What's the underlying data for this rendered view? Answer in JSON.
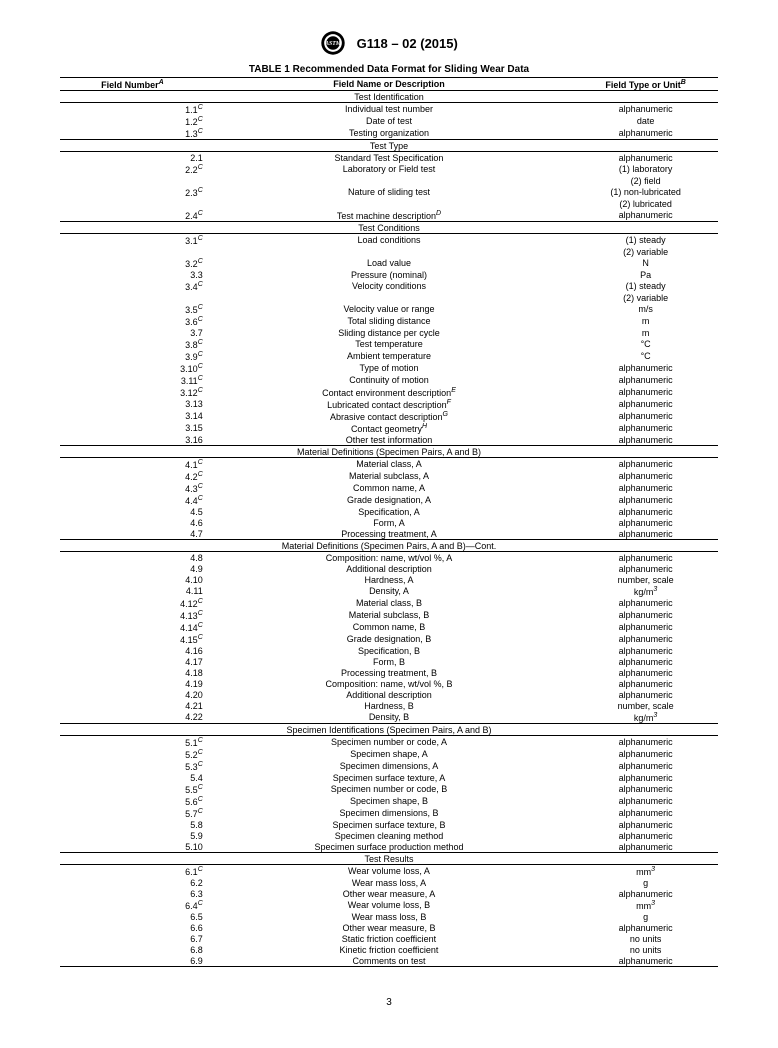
{
  "header": {
    "doc_id": "G118 – 02 (2015)"
  },
  "table_title": "TABLE 1 Recommended Data Format for Sliding Wear Data",
  "columns": {
    "num": "Field Number",
    "num_sup": "A",
    "name": "Field Name or Description",
    "type": "Field Type or Unit",
    "type_sup": "B"
  },
  "sections": [
    {
      "title": "Test Identification",
      "rows": [
        {
          "n": "1.1",
          "s": "C",
          "name": "Individual test number",
          "t": "alphanumeric"
        },
        {
          "n": "1.2",
          "s": "C",
          "name": "Date of test",
          "t": "date"
        },
        {
          "n": "1.3",
          "s": "C",
          "name": "Testing organization",
          "t": "alphanumeric"
        }
      ]
    },
    {
      "title": "Test Type",
      "rows": [
        {
          "n": "2.1",
          "name": "Standard Test Specification",
          "t": "alphanumeric"
        },
        {
          "n": "2.2",
          "s": "C",
          "name": "Laboratory or Field test",
          "t": "(1) laboratory"
        },
        {
          "n": "",
          "name": "",
          "t": "(2) field"
        },
        {
          "n": "2.3",
          "s": "C",
          "name": "Nature of sliding test",
          "t": "(1) non-lubricated"
        },
        {
          "n": "",
          "name": "",
          "t": "(2) lubricated"
        },
        {
          "n": "2.4",
          "s": "C",
          "name": "Test machine description",
          "ns": "D",
          "t": "alphanumeric"
        }
      ]
    },
    {
      "title": "Test Conditions",
      "rows": [
        {
          "n": "3.1",
          "s": "C",
          "name": "Load conditions",
          "t": "(1) steady"
        },
        {
          "n": "",
          "name": "",
          "t": "(2) variable"
        },
        {
          "n": "3.2",
          "s": "C",
          "name": "Load value",
          "t": "N"
        },
        {
          "n": "3.3",
          "name": "Pressure (nominal)",
          "t": "Pa"
        },
        {
          "n": "3.4",
          "s": "C",
          "name": "Velocity conditions",
          "t": "(1) steady"
        },
        {
          "n": "",
          "name": "",
          "t": "(2) variable"
        },
        {
          "n": "3.5",
          "s": "C",
          "name": "Velocity value or range",
          "t": "m/s"
        },
        {
          "n": "3.6",
          "s": "C",
          "name": "Total sliding distance",
          "t": "m"
        },
        {
          "n": "3.7",
          "name": "Sliding distance per cycle",
          "t": "m"
        },
        {
          "n": "3.8",
          "s": "C",
          "name": "Test temperature",
          "t": "°C"
        },
        {
          "n": "3.9",
          "s": "C",
          "name": "Ambient temperature",
          "t": "°C"
        },
        {
          "n": "3.10",
          "s": "C",
          "name": "Type of motion",
          "t": "alphanumeric"
        },
        {
          "n": "3.11",
          "s": "C",
          "name": "Continuity of motion",
          "t": "alphanumeric"
        },
        {
          "n": "3.12",
          "s": "C",
          "name": "Contact environment description",
          "ns": "E",
          "t": "alphanumeric"
        },
        {
          "n": "3.13",
          "name": "Lubricated contact description",
          "ns": "F",
          "t": "alphanumeric"
        },
        {
          "n": "3.14",
          "name": "Abrasive contact description",
          "ns": "G",
          "t": "alphanumeric"
        },
        {
          "n": "3.15",
          "name": "Contact geometry",
          "ns": "H",
          "t": "alphanumeric"
        },
        {
          "n": "3.16",
          "name": "Other test information",
          "t": "alphanumeric"
        }
      ]
    },
    {
      "title": "Material Definitions (Specimen Pairs, A and B)",
      "rows": [
        {
          "n": "4.1",
          "s": "C",
          "name": "Material class, A",
          "t": "alphanumeric"
        },
        {
          "n": "4.2",
          "s": "C",
          "name": "Material subclass, A",
          "t": "alphanumeric"
        },
        {
          "n": "4.3",
          "s": "C",
          "name": "Common name, A",
          "t": "alphanumeric"
        },
        {
          "n": "4.4",
          "s": "C",
          "name": "Grade designation, A",
          "t": "alphanumeric"
        },
        {
          "n": "4.5",
          "name": "Specification, A",
          "t": "alphanumeric"
        },
        {
          "n": "4.6",
          "name": "Form, A",
          "t": "alphanumeric"
        },
        {
          "n": "4.7",
          "name": "Processing treatment, A",
          "t": "alphanumeric"
        }
      ]
    },
    {
      "title": "Material Definitions (Specimen Pairs, A and B)—Cont.",
      "rows": [
        {
          "n": "4.8",
          "name": "Composition: name, wt/vol %, A",
          "t": "alphanumeric"
        },
        {
          "n": "4.9",
          "name": "Additional description",
          "t": "alphanumeric"
        },
        {
          "n": "4.10",
          "name": "Hardness, A",
          "t": "number, scale"
        },
        {
          "n": "4.11",
          "name": "Density, A",
          "t": "kg/m",
          "ts": "3"
        },
        {
          "n": "4.12",
          "s": "C",
          "name": "Material class, B",
          "t": "alphanumeric"
        },
        {
          "n": "4.13",
          "s": "C",
          "name": "Material subclass, B",
          "t": "alphanumeric"
        },
        {
          "n": "4.14",
          "s": "C",
          "name": "Common name, B",
          "t": "alphanumeric"
        },
        {
          "n": "4.15",
          "s": "C",
          "name": "Grade designation, B",
          "t": "alphanumeric"
        },
        {
          "n": "4.16",
          "name": "Specification, B",
          "t": "alphanumeric"
        },
        {
          "n": "4.17",
          "name": "Form, B",
          "t": "alphanumeric"
        },
        {
          "n": "4.18",
          "name": "Processing treatment, B",
          "t": "alphanumeric"
        },
        {
          "n": "4.19",
          "name": "Composition: name, wt/vol %, B",
          "t": "alphanumeric"
        },
        {
          "n": "4.20",
          "name": "Additional description",
          "t": "alphanumeric"
        },
        {
          "n": "4.21",
          "name": "Hardness, B",
          "t": "number, scale"
        },
        {
          "n": "4.22",
          "name": "Density, B",
          "t": "kg/m",
          "ts": "3"
        }
      ]
    },
    {
      "title": "Specimen Identifications (Specimen Pairs, A and B)",
      "rows": [
        {
          "n": "5.1",
          "s": "C",
          "name": "Specimen number or code, A",
          "t": "alphanumeric"
        },
        {
          "n": "5.2",
          "s": "C",
          "name": "Specimen shape, A",
          "t": "alphanumeric"
        },
        {
          "n": "5.3",
          "s": "C",
          "name": "Specimen dimensions, A",
          "t": "alphanumeric"
        },
        {
          "n": "5.4",
          "name": "Specimen surface texture, A",
          "t": "alphanumeric"
        },
        {
          "n": "5.5",
          "s": "C",
          "name": "Specimen number or code, B",
          "t": "alphanumeric"
        },
        {
          "n": "5.6",
          "s": "C",
          "name": "Specimen shape, B",
          "t": "alphanumeric"
        },
        {
          "n": "5.7",
          "s": "C",
          "name": "Specimen dimensions, B",
          "t": "alphanumeric"
        },
        {
          "n": "5.8",
          "name": "Specimen surface texture, B",
          "t": "alphanumeric"
        },
        {
          "n": "5.9",
          "name": "Specimen cleaning method",
          "t": "alphanumeric"
        },
        {
          "n": "5.10",
          "name": "Specimen surface production method",
          "t": "alphanumeric"
        }
      ]
    },
    {
      "title": "Test Results",
      "rows": [
        {
          "n": "6.1",
          "s": "C",
          "name": "Wear volume loss, A",
          "t": "mm",
          "ts": "3"
        },
        {
          "n": "6.2",
          "name": "Wear mass loss, A",
          "t": "g"
        },
        {
          "n": "6.3",
          "name": "Other wear measure, A",
          "t": "alphanumeric"
        },
        {
          "n": "6.4",
          "s": "C",
          "name": "Wear volume loss, B",
          "t": "mm",
          "ts": "3"
        },
        {
          "n": "6.5",
          "name": "Wear mass loss, B",
          "t": "g"
        },
        {
          "n": "6.6",
          "name": "Other wear measure, B",
          "t": "alphanumeric"
        },
        {
          "n": "6.7",
          "name": "Static friction coefficient",
          "t": "no units"
        },
        {
          "n": "6.8",
          "name": "Kinetic friction coefficient",
          "t": "no units"
        },
        {
          "n": "6.9",
          "name": "Comments on test",
          "t": "alphanumeric"
        }
      ]
    }
  ],
  "page_number": "3"
}
